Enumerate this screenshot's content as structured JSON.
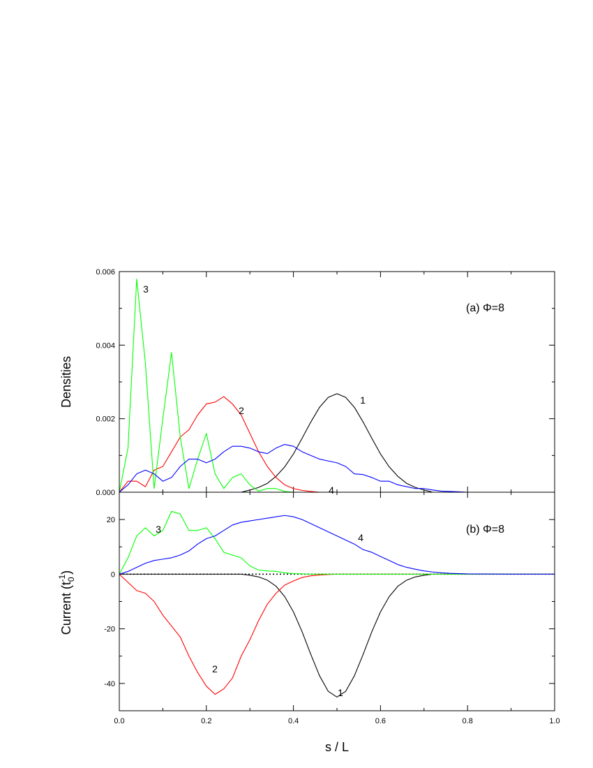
{
  "chart_data": [
    {
      "type": "line",
      "panel_label": "(a) Φ=8",
      "ylabel": "Densities",
      "x": [
        0,
        0.02,
        0.04,
        0.06,
        0.08,
        0.1,
        0.12,
        0.14,
        0.16,
        0.18,
        0.2,
        0.22,
        0.24,
        0.26,
        0.28,
        0.3,
        0.32,
        0.34,
        0.36,
        0.38,
        0.4,
        0.42,
        0.44,
        0.46,
        0.48,
        0.5,
        0.52,
        0.54,
        0.56,
        0.58,
        0.6,
        0.62,
        0.64,
        0.66,
        0.68,
        0.7,
        0.72,
        0.74,
        0.76,
        0.78,
        0.8,
        0.9,
        1.0
      ],
      "series": [
        {
          "name": "1",
          "color": "#000000",
          "values": [
            0,
            0,
            0,
            0,
            0,
            0,
            0,
            0,
            0,
            0,
            0,
            0,
            0,
            0,
            0,
            6e-05,
            0.00013,
            0.00024,
            0.00043,
            0.00069,
            0.00104,
            0.00147,
            0.00191,
            0.00231,
            0.00258,
            0.00268,
            0.00258,
            0.00231,
            0.00191,
            0.00147,
            0.00104,
            0.00069,
            0.00043,
            0.00024,
            0.00013,
            6e-05,
            0,
            0,
            0,
            0,
            0,
            0,
            0
          ]
        },
        {
          "name": "2",
          "color": "#ff0000",
          "values": [
            0,
            0.0003,
            0.0003,
            0.00015,
            0.0006,
            0.0007,
            0.0011,
            0.0015,
            0.0017,
            0.0021,
            0.0024,
            0.00245,
            0.0026,
            0.0024,
            0.0021,
            0.0016,
            0.0011,
            0.0007,
            0.0004,
            0.0002,
            0.0001,
            5e-05,
            2e-05,
            0,
            0,
            0,
            0,
            0,
            0,
            0,
            0,
            0,
            0,
            0,
            0,
            0,
            0,
            0,
            0,
            0,
            0,
            0,
            0
          ]
        },
        {
          "name": "3",
          "color": "#00ff00",
          "values": [
            0,
            0.0012,
            0.0058,
            0.0035,
            0.0001,
            0.002,
            0.0038,
            0.0015,
            0.0001,
            0.0009,
            0.0016,
            0.0005,
            0.0001,
            0.0004,
            0.0005,
            0.0002,
            3e-05,
            0.0001,
            0.0001,
            2e-05,
            0,
            0,
            0,
            0,
            0,
            0,
            0,
            0,
            0,
            0,
            0,
            0,
            0,
            0,
            0,
            0,
            0,
            0,
            0,
            0,
            0,
            0,
            0
          ]
        },
        {
          "name": "4",
          "color": "#0000ff",
          "values": [
            0,
            0.0002,
            0.0005,
            0.0006,
            0.0005,
            0.0003,
            0.0004,
            0.0007,
            0.0009,
            0.0009,
            0.0008,
            0.0009,
            0.0011,
            0.00125,
            0.00125,
            0.0012,
            0.0011,
            0.00105,
            0.0012,
            0.0013,
            0.00125,
            0.0011,
            0.001,
            0.0009,
            0.00085,
            0.0008,
            0.0007,
            0.0005,
            0.00048,
            0.0004,
            0.0003,
            0.0003,
            0.0002,
            0.00015,
            0.0001,
            0.0001,
            6e-05,
            3e-05,
            2e-05,
            1e-05,
            0,
            0,
            0
          ]
        }
      ],
      "xlim": [
        0,
        1
      ],
      "xticks": [
        0,
        0.2,
        0.4,
        0.6,
        0.8,
        1
      ],
      "xminorticks": [
        0.1,
        0.3,
        0.5,
        0.7,
        0.9
      ],
      "ylim": [
        0,
        0.006
      ],
      "yticks": [
        {
          "value": 0,
          "label": "0.000"
        },
        0.002,
        0.004,
        0.006
      ],
      "yminorticks": [
        0.001,
        0.003,
        0.005
      ]
    },
    {
      "type": "line",
      "panel_label": "(b) Φ=8",
      "xlabel": "s / L",
      "ylabel": {
        "text": "Current (t",
        "sub": "0",
        "sup": "-1",
        "end": ")"
      },
      "x": [
        0,
        0.02,
        0.04,
        0.06,
        0.08,
        0.1,
        0.12,
        0.14,
        0.16,
        0.18,
        0.2,
        0.22,
        0.24,
        0.26,
        0.28,
        0.3,
        0.32,
        0.34,
        0.36,
        0.38,
        0.4,
        0.42,
        0.44,
        0.46,
        0.48,
        0.5,
        0.52,
        0.54,
        0.56,
        0.58,
        0.6,
        0.62,
        0.64,
        0.66,
        0.68,
        0.7,
        0.72,
        0.74,
        0.76,
        0.78,
        0.8,
        0.9,
        1.0
      ],
      "series": [
        {
          "name": "1",
          "color": "#000000",
          "values": [
            0,
            0,
            0,
            0,
            0,
            0,
            0,
            0,
            0,
            0,
            0,
            0,
            0,
            0,
            0,
            -0.4,
            -1,
            -2.2,
            -4.4,
            -8.2,
            -13.8,
            -21.1,
            -29.4,
            -37.2,
            -42.9,
            -45,
            -42.9,
            -37.2,
            -29.4,
            -21.1,
            -13.8,
            -8.2,
            -4.4,
            -2.2,
            -1,
            -0.4,
            0,
            0,
            0,
            0,
            0,
            0,
            0
          ]
        },
        {
          "name": "2",
          "color": "#ff0000",
          "values": [
            0,
            -3,
            -6,
            -7,
            -10,
            -15,
            -19,
            -23,
            -30,
            -36,
            -41,
            -44,
            -42,
            -38,
            -30,
            -24,
            -17,
            -11,
            -7,
            -4,
            -2.5,
            -1.2,
            -0.6,
            -0.3,
            -0.1,
            0,
            0,
            0,
            0,
            0,
            0,
            0,
            0,
            0,
            0,
            0,
            0,
            0,
            0,
            0,
            0,
            0,
            0
          ]
        },
        {
          "name": "3",
          "color": "#00ff00",
          "values": [
            0,
            6,
            14,
            17,
            14,
            16,
            23,
            22,
            16,
            16,
            17,
            13,
            8,
            7,
            6,
            3,
            1.5,
            1.2,
            1,
            0.5,
            0.2,
            0.1,
            0,
            0,
            0,
            0,
            0,
            0,
            0,
            0,
            0,
            0,
            0,
            0,
            0,
            0,
            0,
            0,
            0,
            0,
            0,
            0,
            0
          ]
        },
        {
          "name": "4",
          "color": "#0000ff",
          "values": [
            0,
            1,
            2.5,
            4,
            5,
            5.5,
            6,
            7,
            8.5,
            11,
            13,
            14,
            16,
            18,
            19,
            19.5,
            20,
            20.5,
            21,
            21.5,
            21,
            20,
            18.5,
            17,
            15.5,
            14,
            12.5,
            11,
            9,
            8,
            6.5,
            5,
            3.5,
            2.5,
            1.8,
            1.2,
            0.8,
            0.5,
            0.3,
            0.2,
            0.1,
            0,
            0
          ]
        }
      ],
      "hline": 0,
      "xlim": [
        0,
        1
      ],
      "xticks": [
        {
          "value": 0,
          "label": "0.0"
        },
        0.2,
        0.4,
        0.6,
        0.8,
        {
          "value": 1,
          "label": "1.0"
        }
      ],
      "xminorticks": [
        0.1,
        0.3,
        0.5,
        0.7,
        0.9
      ],
      "ylim": [
        -50,
        30
      ],
      "yticks": [
        -40,
        -20,
        0,
        20
      ],
      "yminorticks": [
        -30,
        -10,
        10
      ]
    }
  ]
}
